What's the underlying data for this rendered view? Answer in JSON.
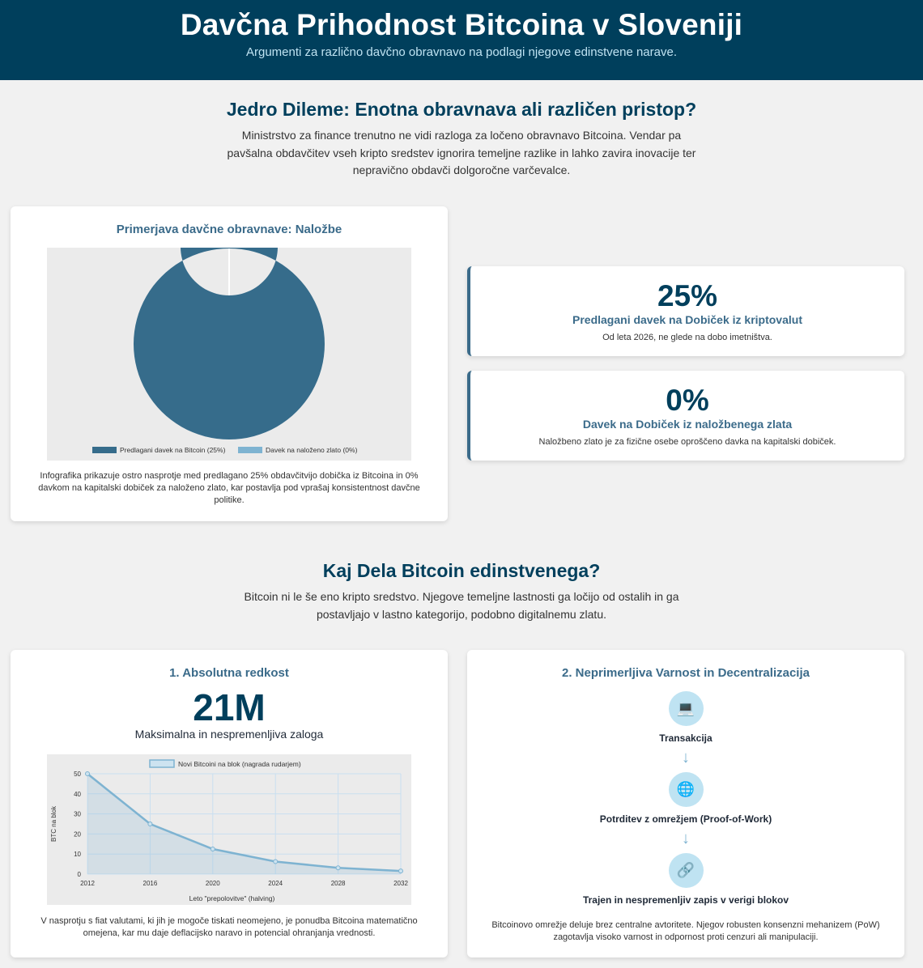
{
  "header": {
    "title": "Davčna Prihodnost Bitcoina v Sloveniji",
    "subtitle": "Argumenti za različno davčno obravnavo na podlagi njegove edinstvene narave."
  },
  "intro": {
    "title": "Jedro Dileme: Enotna obravnava ali različen pristop?",
    "text": "Ministrstvo za finance trenutno ne vidi razloga za ločeno obravnavo Bitcoina. Vendar pa pavšalna obdavčitev vseh kripto sredstev ignorira temeljne razlike in lahko zavira inovacije ter nepravično obdavči dolgoročne varčevalce."
  },
  "comparison_card": {
    "title": "Primerjava davčne obravnave: Naložbe",
    "caption": "Infografika prikazuje ostro nasprotje med predlagano 25% obdavčitvijo dobička iz Bitcoina in 0% davkom na kapitalski dobiček za naloženo zlato, kar postavlja pod vprašaj konsistentnost davčne politike."
  },
  "stats": [
    {
      "value": "25%",
      "label": "Predlagani davek na Dobiček iz kriptovalut",
      "note": "Od leta 2026, ne glede na dobo imetništva."
    },
    {
      "value": "0%",
      "label": "Davek na Dobiček iz naložbenega zlata",
      "note": "Naložbeno zlato je za fizične osebe oproščeno davka na kapitalski dobiček."
    }
  ],
  "unique": {
    "title": "Kaj Dela Bitcoin edinstvenega?",
    "text": "Bitcoin ni le še eno kripto sredstvo. Njegove temeljne lastnosti ga ločijo od ostalih in ga postavljajo v lastno kategorijo, podobno digitalnemu zlatu."
  },
  "scarcity_card": {
    "title": "1. Absolutna redkost",
    "big_value": "21M",
    "big_label": "Maksimalna in nespremenljiva zaloga",
    "caption": "V nasprotju s fiat valutami, ki jih je mogoče tiskati neomejeno, je ponudba Bitcoina matematično omejena, kar mu daje deflacijsko naravo in potencial ohranjanja vrednosti."
  },
  "security_card": {
    "title": "2. Neprimerljiva Varnost in Decentralizacija",
    "steps": [
      {
        "icon": "laptop-icon",
        "glyph": "💻",
        "label": "Transakcija"
      },
      {
        "icon": "globe-icon",
        "glyph": "🌐",
        "label": "Potrditev z omrežjem (Proof-of-Work)"
      },
      {
        "icon": "chain-link-icon",
        "glyph": "🔗",
        "label": "Trajen in nespremenljiv zapis v verigi blokov"
      }
    ],
    "arrow": "↓",
    "caption": "Bitcoinovo omrežje deluje brez centralne avtoritete. Njegov robusten konsenzni mehanizem (PoW) zagotavlja visoko varnost in odpornost proti cenzuri ali manipulaciji."
  },
  "colors": {
    "primary": "#003f5c",
    "accent": "#3b6b8a",
    "light_accent": "#7eb3d1",
    "chart_bg": "#ebebeb"
  },
  "chart_data": [
    {
      "type": "pie",
      "categories": [
        "Predlagani davek na Bitcoin (25%)",
        "Davek na naloženo zlato (0%)"
      ],
      "values": [
        25,
        0
      ],
      "colors": [
        "#366c8b",
        "#7eb3d1"
      ],
      "legend": "bottom"
    },
    {
      "type": "area",
      "series": [
        {
          "name": "Novi Bitcoini na blok (nagrada rudarjem)",
          "x": [
            2012,
            2016,
            2020,
            2024,
            2028,
            2032
          ],
          "values": [
            50,
            25,
            12.5,
            6.25,
            3.125,
            1.5625
          ]
        }
      ],
      "xlabel": "Leto \"prepolovitve\" (halving)",
      "ylabel": "BTC na blok",
      "xticks": [
        "2012",
        "2016",
        "2020",
        "2024",
        "2028",
        "2032"
      ],
      "yticks": [
        "0",
        "10",
        "20",
        "30",
        "40",
        "50"
      ],
      "xlim": [
        2012,
        2032
      ],
      "ylim": [
        0,
        50
      ],
      "grid": true,
      "legend": "top"
    }
  ]
}
